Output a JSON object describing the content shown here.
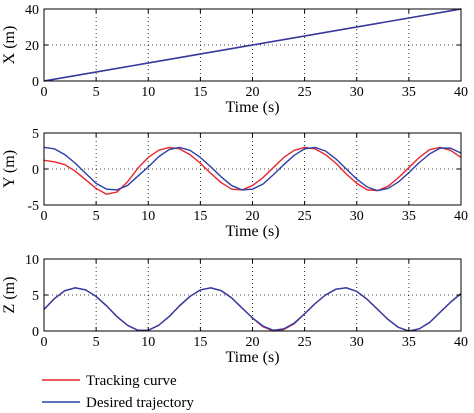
{
  "chart_data": [
    {
      "type": "line",
      "xlabel": "Time (s)",
      "ylabel": "X (m)",
      "xlim": [
        0,
        40
      ],
      "ylim": [
        0,
        40
      ],
      "xticks": [
        "0",
        "5",
        "10",
        "15",
        "20",
        "25",
        "30",
        "35",
        "40"
      ],
      "yticks": [
        "0",
        "20",
        "40"
      ],
      "grid": true,
      "series": [
        {
          "name": "Tracking curve",
          "color": "#e8262e",
          "x": [
            0,
            10,
            20,
            30,
            40
          ],
          "y": [
            0,
            10,
            20,
            30,
            40
          ]
        },
        {
          "name": "Desired trajectory",
          "color": "#2b3fa8",
          "x": [
            0,
            10,
            20,
            30,
            40
          ],
          "y": [
            0,
            10,
            20,
            30,
            40
          ]
        }
      ]
    },
    {
      "type": "line",
      "xlabel": "Time (s)",
      "ylabel": "Y (m)",
      "xlim": [
        0,
        40
      ],
      "ylim": [
        -5,
        5
      ],
      "xticks": [
        "0",
        "5",
        "10",
        "15",
        "20",
        "25",
        "30",
        "35",
        "40"
      ],
      "yticks": [
        "-5",
        "0",
        "5"
      ],
      "grid": true,
      "series": [
        {
          "name": "Tracking curve",
          "color": "#e8262e",
          "x": [
            0,
            1,
            2,
            3,
            4,
            5,
            6,
            7,
            8,
            9,
            10,
            11,
            12,
            13,
            14,
            15,
            16,
            17,
            18,
            19,
            20,
            21,
            22,
            23,
            24,
            25,
            26,
            27,
            28,
            29,
            30,
            31,
            32,
            33,
            34,
            35,
            36,
            37,
            38,
            39,
            40
          ],
          "y": [
            1.2,
            1.0,
            0.6,
            -0.3,
            -1.5,
            -2.7,
            -3.5,
            -3.2,
            -1.8,
            0.1,
            1.6,
            2.6,
            3.0,
            2.8,
            2.0,
            0.8,
            -0.6,
            -1.9,
            -2.8,
            -2.9,
            -2.3,
            -1.2,
            0.2,
            1.6,
            2.6,
            3.0,
            2.8,
            2.0,
            0.8,
            -0.7,
            -2.0,
            -2.9,
            -3.0,
            -2.4,
            -1.2,
            0.2,
            1.6,
            2.7,
            3.0,
            2.6,
            1.6
          ]
        },
        {
          "name": "Desired trajectory",
          "color": "#2b3fa8",
          "x": [
            0,
            1,
            2,
            3,
            4,
            5,
            6,
            7,
            8,
            9,
            10,
            11,
            12,
            13,
            14,
            15,
            16,
            17,
            18,
            19,
            20,
            21,
            22,
            23,
            24,
            25,
            26,
            27,
            28,
            29,
            30,
            31,
            32,
            33,
            34,
            35,
            36,
            37,
            38,
            39,
            40
          ],
          "y": [
            3.0,
            2.8,
            2.0,
            0.8,
            -0.6,
            -2.0,
            -2.8,
            -2.9,
            -2.3,
            -1.0,
            0.3,
            1.7,
            2.7,
            3.0,
            2.6,
            1.6,
            0.3,
            -1.1,
            -2.3,
            -2.9,
            -2.8,
            -2.1,
            -0.8,
            0.6,
            1.9,
            2.8,
            3.0,
            2.5,
            1.4,
            0.0,
            -1.4,
            -2.5,
            -3.0,
            -2.7,
            -1.8,
            -0.5,
            0.9,
            2.1,
            2.9,
            2.9,
            2.2
          ]
        }
      ]
    },
    {
      "type": "line",
      "xlabel": "Time (s)",
      "ylabel": "Z (m)",
      "xlim": [
        0,
        40
      ],
      "ylim": [
        0,
        10
      ],
      "xticks": [
        "0",
        "5",
        "10",
        "15",
        "20",
        "25",
        "30",
        "35",
        "40"
      ],
      "yticks": [
        "0",
        "5",
        "10"
      ],
      "grid": true,
      "series": [
        {
          "name": "Tracking curve",
          "color": "#e8262e",
          "x": [
            0,
            1,
            2,
            3,
            4,
            5,
            6,
            7,
            8,
            9,
            10,
            11,
            12,
            13,
            14,
            15,
            16,
            17,
            18,
            19,
            20,
            21,
            22,
            23,
            24,
            25,
            26,
            27,
            28,
            29,
            30,
            31,
            32,
            33,
            34,
            35,
            36,
            37,
            38,
            39,
            40
          ],
          "y": [
            3.0,
            4.5,
            5.6,
            6.0,
            5.7,
            4.8,
            3.5,
            2.0,
            0.8,
            0.1,
            0.1,
            0.8,
            2.0,
            3.5,
            4.8,
            5.7,
            6.0,
            5.6,
            4.6,
            3.2,
            1.8,
            0.6,
            0.0,
            0.2,
            1.0,
            2.4,
            3.8,
            5.0,
            5.8,
            6.0,
            5.5,
            4.4,
            3.0,
            1.6,
            0.5,
            0.0,
            0.3,
            1.2,
            2.6,
            4.0,
            5.2
          ]
        },
        {
          "name": "Desired trajectory",
          "color": "#2b3fa8",
          "x": [
            0,
            1,
            2,
            3,
            4,
            5,
            6,
            7,
            8,
            9,
            10,
            11,
            12,
            13,
            14,
            15,
            16,
            17,
            18,
            19,
            20,
            21,
            22,
            23,
            24,
            25,
            26,
            27,
            28,
            29,
            30,
            31,
            32,
            33,
            34,
            35,
            36,
            37,
            38,
            39,
            40
          ],
          "y": [
            3.0,
            4.5,
            5.6,
            6.0,
            5.7,
            4.8,
            3.5,
            2.0,
            0.8,
            0.1,
            0.1,
            0.8,
            2.0,
            3.5,
            4.8,
            5.7,
            6.0,
            5.6,
            4.6,
            3.2,
            1.8,
            0.7,
            0.1,
            0.3,
            1.1,
            2.4,
            3.8,
            5.0,
            5.8,
            6.0,
            5.5,
            4.4,
            3.0,
            1.6,
            0.5,
            0.0,
            0.3,
            1.2,
            2.6,
            4.0,
            5.2
          ]
        }
      ]
    }
  ],
  "legend": {
    "placement": "bottom-left",
    "entries": [
      {
        "label": "Tracking curve",
        "color": "#e8262e"
      },
      {
        "label": "Desired trajectory",
        "color": "#2b3fa8"
      }
    ]
  }
}
